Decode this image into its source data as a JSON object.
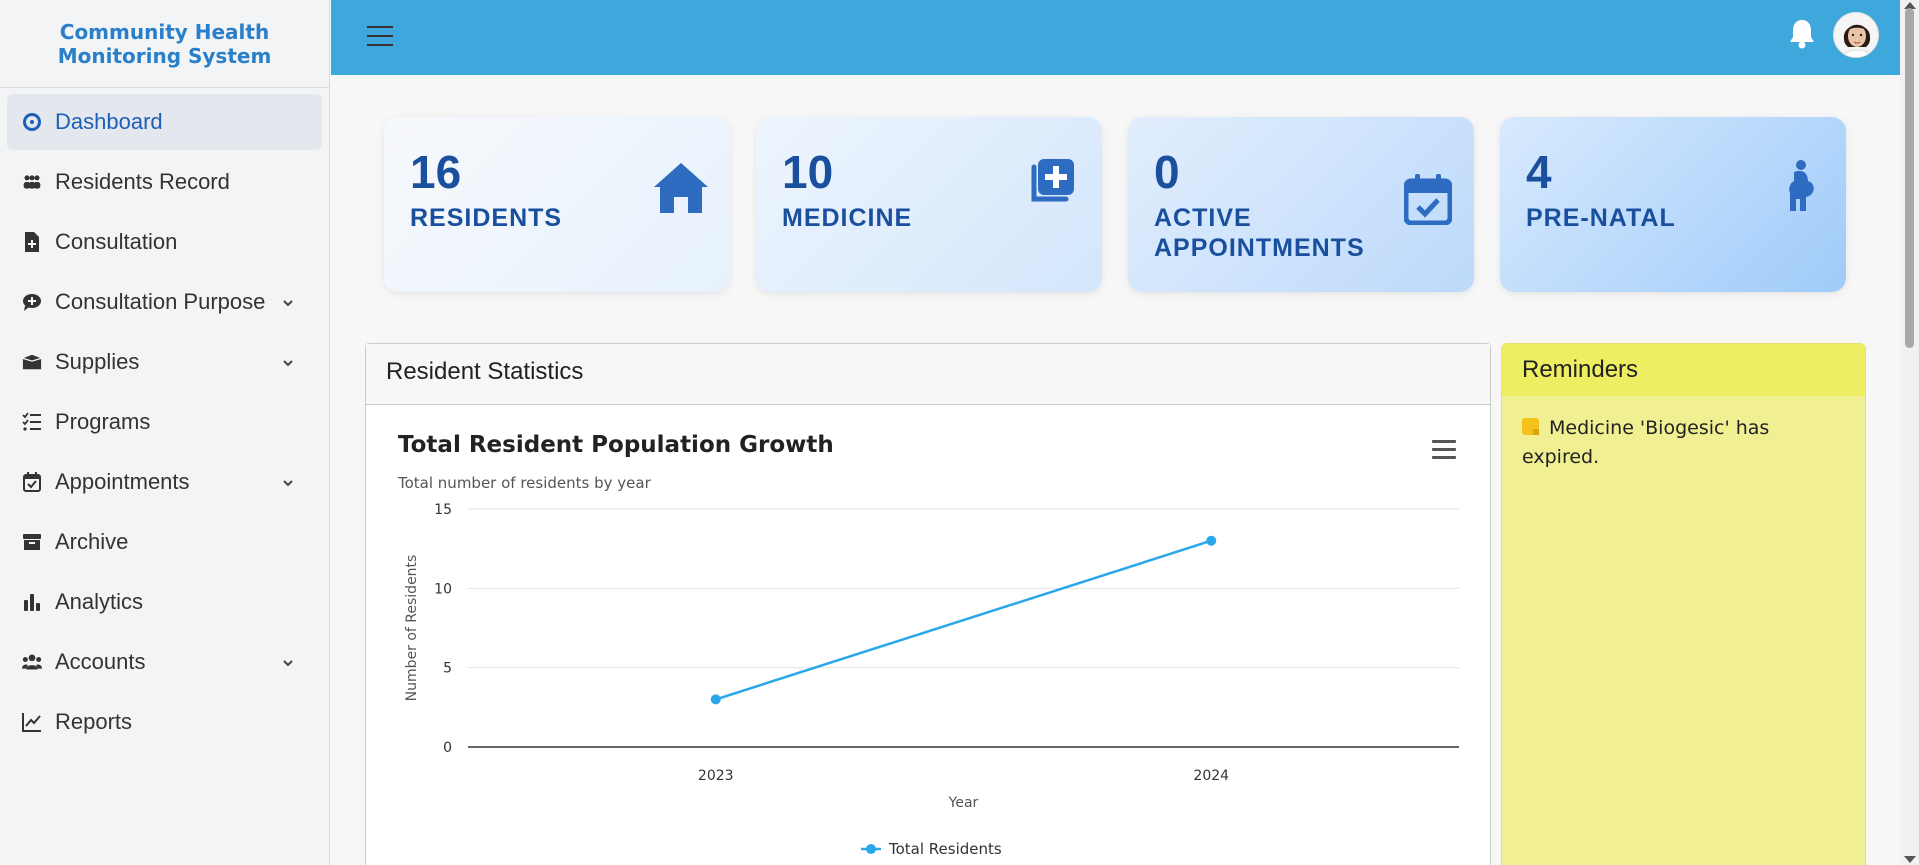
{
  "brand": {
    "title": "Community Health Monitoring System"
  },
  "sidebar": {
    "items": [
      {
        "label": "Dashboard",
        "icon": "dashboard-icon",
        "active": true,
        "has_submenu": false
      },
      {
        "label": "Residents Record",
        "icon": "users-icon",
        "active": false,
        "has_submenu": false
      },
      {
        "label": "Consultation",
        "icon": "file-medical-icon",
        "active": false,
        "has_submenu": false
      },
      {
        "label": "Consultation Purpose",
        "icon": "comment-medical-icon",
        "active": false,
        "has_submenu": true
      },
      {
        "label": "Supplies",
        "icon": "box-icon",
        "active": false,
        "has_submenu": true
      },
      {
        "label": "Programs",
        "icon": "list-check-icon",
        "active": false,
        "has_submenu": false
      },
      {
        "label": "Appointments",
        "icon": "calendar-check-icon",
        "active": false,
        "has_submenu": true
      },
      {
        "label": "Archive",
        "icon": "archive-icon",
        "active": false,
        "has_submenu": false
      },
      {
        "label": "Analytics",
        "icon": "bar-chart-icon",
        "active": false,
        "has_submenu": false
      },
      {
        "label": "Accounts",
        "icon": "users-group-icon",
        "active": false,
        "has_submenu": true
      },
      {
        "label": "Reports",
        "icon": "line-chart-icon",
        "active": false,
        "has_submenu": false
      }
    ]
  },
  "topbar": {
    "menu_icon": "hamburger-icon",
    "bell_icon": "bell-icon",
    "avatar": "user-avatar"
  },
  "cards": [
    {
      "value": "16",
      "label": "RESIDENTS",
      "icon": "home-icon"
    },
    {
      "value": "10",
      "label": "MEDICINE",
      "icon": "medical-plus-icon"
    },
    {
      "value": "0",
      "label": "ACTIVE APPOINTMENTS",
      "icon": "calendar-check-icon"
    },
    {
      "value": "4",
      "label": "PRE-NATAL",
      "icon": "pregnant-icon"
    }
  ],
  "stats": {
    "panel_title": "Resident Statistics",
    "chart_title": "Total Resident Population Growth",
    "chart_subtitle": "Total number of residents by year"
  },
  "chart_data": {
    "type": "line",
    "title": "Total Resident Population Growth",
    "subtitle": "Total number of residents by year",
    "categories": [
      "2023",
      "2024"
    ],
    "series": [
      {
        "name": "Total Residents",
        "values": [
          3,
          13
        ],
        "color": "#2aa7e8"
      }
    ],
    "xlabel": "Year",
    "ylabel": "Number of Residents",
    "ylim": [
      0,
      15
    ],
    "yticks": [
      0,
      5,
      10,
      15
    ],
    "grid": true,
    "legend": "bottom-center"
  },
  "reminders": {
    "title": "Reminders",
    "items": [
      {
        "icon": "sticky-note-icon",
        "text": "Medicine 'Biogesic' has expired."
      }
    ]
  },
  "colors": {
    "topbar": "#3ea7db",
    "accent": "#1d5fb7",
    "card_text": "#1a4f9e",
    "reminder_bg": "#f0f093"
  }
}
